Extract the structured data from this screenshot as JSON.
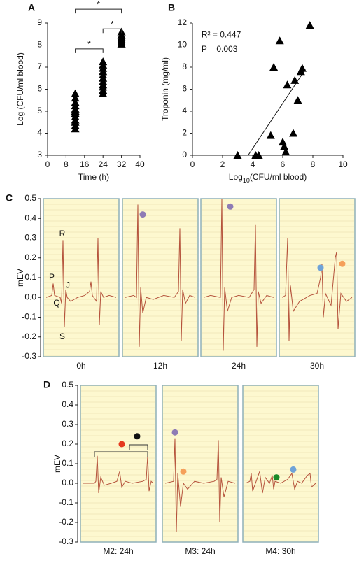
{
  "chart_data": [
    {
      "type": "scatter",
      "panel_label": "A",
      "xlabel": "Time (h)",
      "ylabel": "Log (CFU/ml blood)",
      "color": "#000000",
      "x": [
        12,
        12,
        12,
        12,
        12,
        12,
        12,
        12,
        12,
        12,
        12,
        12,
        24,
        24,
        24,
        24,
        24,
        24,
        24,
        24,
        24,
        24,
        24,
        32,
        32,
        32,
        32,
        32,
        32
      ],
      "values": [
        4.2,
        4.35,
        4.5,
        4.6,
        4.75,
        4.9,
        5.0,
        5.1,
        5.25,
        5.4,
        5.6,
        5.8,
        5.8,
        5.95,
        6.1,
        6.2,
        6.35,
        6.5,
        6.65,
        6.8,
        6.95,
        7.1,
        7.25,
        8.05,
        8.15,
        8.25,
        8.35,
        8.45,
        8.6
      ],
      "xlim": [
        0,
        40
      ],
      "xticks": [
        0,
        8,
        16,
        24,
        32,
        40
      ],
      "ylim": [
        3,
        9
      ],
      "yticks": [
        3,
        4,
        5,
        6,
        7,
        8,
        9
      ],
      "annotations": [
        {
          "text": "*",
          "x": [
            12,
            24
          ],
          "y": 7.83
        },
        {
          "text": "*",
          "x": [
            12,
            32
          ],
          "y": 9.63
        },
        {
          "text": "*",
          "x": [
            24,
            32
          ],
          "y": 8.74
        }
      ]
    },
    {
      "type": "scatter",
      "panel_label": "B",
      "xlabel_parts": [
        "Log",
        "10",
        "(CFU/ml blood)"
      ],
      "ylabel": "Troponin (mg/ml)",
      "color": "#000000",
      "x": [
        3,
        4.2,
        4.4,
        5.2,
        5.4,
        5.8,
        6,
        6.1,
        6.2,
        6.3,
        6.7,
        6.8,
        7,
        7.2,
        7.3,
        7.8
      ],
      "values": [
        0,
        0,
        0,
        1.8,
        8,
        10.4,
        1.2,
        0.8,
        0.3,
        6.4,
        2,
        6.8,
        5,
        7.6,
        7.9,
        11.8
      ],
      "xlim": [
        0,
        10
      ],
      "xticks": [
        0,
        2,
        4,
        6,
        8,
        10
      ],
      "ylim": [
        0,
        12
      ],
      "yticks": [
        0,
        2,
        4,
        6,
        8,
        10,
        12
      ],
      "trendline": {
        "x": [
          3.7,
          7.5
        ],
        "values": [
          0,
          7.8
        ]
      },
      "annotations": [
        {
          "text": "R² = 0.447",
          "x": 0.6,
          "y": 10.9
        },
        {
          "text": "P = 0.003",
          "x": 0.6,
          "y": 9.6
        }
      ]
    },
    {
      "type": "ecg",
      "panel_label": "C",
      "ylabel": "mEV",
      "ylim": [
        -0.3,
        0.5
      ],
      "xlim": [
        0,
        100
      ],
      "trace_color": "#b5533c",
      "yticks": [
        -0.3,
        -0.2,
        -0.1,
        {
          "value": 0,
          "label": "0.0"
        },
        0.1,
        0.2,
        0.3,
        0.4,
        0.5
      ],
      "panels": [
        {
          "label": "0h",
          "x": [
            0,
            8,
            10,
            12,
            20,
            22,
            24,
            26,
            28,
            30,
            35,
            45,
            55,
            62,
            64,
            66,
            72,
            74,
            76,
            78,
            82,
            90,
            100
          ],
          "values": [
            0,
            0.01,
            0.07,
            0.01,
            0,
            -0.03,
            0.29,
            -0.15,
            0.04,
            0,
            -0.02,
            0,
            0.01,
            0.03,
            0.08,
            0.01,
            -0.02,
            0.3,
            -0.14,
            0.03,
            0,
            0.01,
            0
          ],
          "dots": [],
          "annotations": [
            {
              "text": "P",
              "x": 8,
              "y": 0.1
            },
            {
              "text": "R",
              "x": 23,
              "y": 0.32
            },
            {
              "text": "J",
              "x": 31,
              "y": 0.06
            },
            {
              "text": "Q",
              "x": 15,
              "y": -0.03
            },
            {
              "text": "S",
              "x": 23,
              "y": -0.2
            }
          ]
        },
        {
          "label": "12h",
          "x": [
            0,
            12,
            16,
            18,
            20,
            22,
            25,
            30,
            40,
            55,
            70,
            76,
            78,
            80,
            82,
            86,
            92,
            100
          ],
          "values": [
            0,
            0.01,
            0,
            0.47,
            -0.25,
            0.05,
            -0.08,
            0,
            -0.01,
            0.01,
            0,
            0.03,
            0.35,
            -0.22,
            0.04,
            -0.03,
            0.01,
            0
          ],
          "dots": [
            {
              "color": "#8e7bb5",
              "x": 25,
              "value": 0.42
            }
          ],
          "annotations": []
        },
        {
          "label": "24h",
          "x": [
            0,
            10,
            24,
            26,
            28,
            30,
            34,
            40,
            50,
            65,
            72,
            74,
            76,
            78,
            82,
            90,
            100
          ],
          "values": [
            0,
            0.01,
            0,
            0.5,
            -0.27,
            0.05,
            -0.07,
            0,
            0.01,
            0,
            0.04,
            0.37,
            -0.25,
            0.03,
            -0.03,
            0.01,
            0
          ],
          "dots": [
            {
              "color": "#8e7bb5",
              "x": 38,
              "value": 0.46
            }
          ],
          "annotations": []
        },
        {
          "label": "30h",
          "x": [
            0,
            5,
            8,
            10,
            12,
            16,
            25,
            40,
            50,
            55,
            57,
            59,
            62,
            70,
            76,
            78,
            80,
            84,
            92,
            100
          ],
          "values": [
            0,
            0.01,
            0.3,
            -0.22,
            0.06,
            -0.07,
            -0.02,
            0.01,
            0.02,
            0.1,
            0.17,
            -0.1,
            0.02,
            -0.04,
            0.2,
            0.23,
            -0.16,
            0.02,
            -0.02,
            0
          ],
          "dots": [
            {
              "color": "#6fa3d8",
              "x": 55,
              "value": 0.15
            },
            {
              "color": "#f5a05a",
              "x": 86,
              "value": 0.17
            }
          ],
          "annotations": []
        }
      ]
    },
    {
      "type": "ecg",
      "panel_label": "D",
      "ylabel": "mEV",
      "ylim": [
        -0.3,
        0.5
      ],
      "xlim": [
        0,
        100
      ],
      "trace_color": "#b5533c",
      "yticks": [
        -0.3,
        -0.2,
        -0.1,
        {
          "value": 0,
          "label": "0.0"
        },
        0.1,
        0.2,
        0.3,
        0.4,
        0.5
      ],
      "panels": [
        {
          "label": "M2: 24h",
          "x": [
            0,
            16,
            18,
            20,
            22,
            25,
            30,
            40,
            48,
            52,
            55,
            60,
            70,
            85,
            90,
            92,
            94,
            97,
            100
          ],
          "values": [
            0,
            0,
            0.01,
            0.14,
            -0.05,
            0.03,
            -0.01,
            0,
            0.01,
            0.06,
            -0.02,
            0.01,
            0,
            0.01,
            0.02,
            0.14,
            -0.04,
            0.01,
            0
          ],
          "dots": [
            {
              "color": "#e5391e",
              "x": 55,
              "value": 0.2
            },
            {
              "color": "#111111",
              "x": 77,
              "value": 0.24
            }
          ],
          "annotations": []
        },
        {
          "label": "M3: 24h",
          "x": [
            0,
            12,
            14,
            16,
            18,
            22,
            26,
            32,
            42,
            55,
            70,
            74,
            76,
            78,
            80,
            84,
            90,
            100
          ],
          "values": [
            0,
            0.01,
            0.23,
            -0.25,
            0.05,
            -0.12,
            0,
            -0.03,
            0.01,
            0,
            0.01,
            0.02,
            0.22,
            -0.2,
            0.03,
            -0.07,
            0.01,
            0
          ],
          "dots": [
            {
              "color": "#8e7bb5",
              "x": 14,
              "value": 0.26
            },
            {
              "color": "#f5a05a",
              "x": 26,
              "value": 0.06
            }
          ],
          "annotations": []
        },
        {
          "label": "M4: 30h",
          "x": [
            0,
            6,
            8,
            10,
            16,
            20,
            24,
            28,
            34,
            38,
            40,
            42,
            50,
            60,
            66,
            70,
            74,
            80,
            88,
            92,
            94,
            100
          ],
          "values": [
            0,
            0.01,
            0.05,
            -0.04,
            0.02,
            0.06,
            -0.05,
            0.03,
            0,
            0.04,
            -0.03,
            0.01,
            0,
            0.02,
            0.05,
            -0.03,
            0.01,
            0,
            0.04,
            0.05,
            -0.02,
            0
          ],
          "dots": [
            {
              "color": "#1a8a2a",
              "x": 44,
              "value": 0.03
            },
            {
              "color": "#6fa3d8",
              "x": 68,
              "value": 0.07
            }
          ],
          "annotations": []
        }
      ]
    }
  ]
}
